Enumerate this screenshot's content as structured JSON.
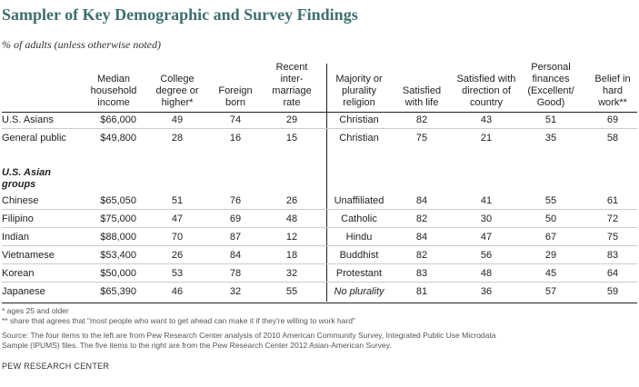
{
  "title": "Sampler of Key Demographic and Survey Findings",
  "subtitle": "% of adults (unless otherwise noted)",
  "columns": {
    "income": [
      "Median",
      "household",
      "income"
    ],
    "college": [
      "College",
      "degree or",
      "higher*"
    ],
    "foreign": [
      "Foreign",
      "born"
    ],
    "intermarriage": [
      "Recent",
      "inter-",
      "marriage",
      "rate"
    ],
    "religion": [
      "Majority or",
      "plurality",
      "religion"
    ],
    "life": [
      "Satisfied",
      "with life"
    ],
    "direction": [
      "Satisfied with",
      "direction of",
      "country"
    ],
    "finances": [
      "Personal",
      "finances",
      "(Excellent/",
      "Good)"
    ],
    "hardwork": [
      "Belief in",
      "hard",
      "work**"
    ]
  },
  "top_rows": [
    {
      "group": "U.S. Asians",
      "income": "$66,000",
      "college": "49",
      "foreign": "74",
      "intermarriage": "29",
      "religion": "Christian",
      "life": "82",
      "direction": "43",
      "finances": "51",
      "hardwork": "69"
    },
    {
      "group": "General public",
      "income": "$49,800",
      "college": "28",
      "foreign": "16",
      "intermarriage": "15",
      "religion": "Christian",
      "life": "75",
      "direction": "21",
      "finances": "35",
      "hardwork": "58"
    }
  ],
  "section_label": [
    "U.S. Asian",
    "groups"
  ],
  "group_rows": [
    {
      "group": "Chinese",
      "income": "$65,050",
      "college": "51",
      "foreign": "76",
      "intermarriage": "26",
      "religion": "Unaffiliated",
      "life": "84",
      "direction": "41",
      "finances": "55",
      "hardwork": "61"
    },
    {
      "group": "Filipino",
      "income": "$75,000",
      "college": "47",
      "foreign": "69",
      "intermarriage": "48",
      "religion": "Catholic",
      "life": "82",
      "direction": "30",
      "finances": "50",
      "hardwork": "72"
    },
    {
      "group": "Indian",
      "income": "$88,000",
      "college": "70",
      "foreign": "87",
      "intermarriage": "12",
      "religion": "Hindu",
      "life": "84",
      "direction": "47",
      "finances": "67",
      "hardwork": "75"
    },
    {
      "group": "Vietnamese",
      "income": "$53,400",
      "college": "26",
      "foreign": "84",
      "intermarriage": "18",
      "religion": "Buddhist",
      "life": "82",
      "direction": "56",
      "finances": "29",
      "hardwork": "83"
    },
    {
      "group": "Korean",
      "income": "$50,000",
      "college": "53",
      "foreign": "78",
      "intermarriage": "32",
      "religion": "Protestant",
      "life": "83",
      "direction": "48",
      "finances": "45",
      "hardwork": "64"
    },
    {
      "group": "Japanese",
      "income": "$65,390",
      "college": "46",
      "foreign": "32",
      "intermarriage": "55",
      "religion": "No plurality",
      "religion_italic": true,
      "life": "81",
      "direction": "36",
      "finances": "57",
      "hardwork": "59"
    }
  ],
  "notes": {
    "n1": "* ages 25 and older",
    "n2": "** share that agrees that \"most people who want to get ahead can make it if they're willing to work hard\""
  },
  "source_lines": [
    "Source: The four items to the left are from Pew Research Center analysis of 2010 American Community Survey, Integrated Public Use Microdata",
    "Sample (IPUMS) files. The five items to the right are from the Pew Research Center 2012 Asian-American Survey."
  ],
  "footer": "PEW RESEARCH CENTER",
  "colors": {
    "title": "#3f6f6f",
    "rule": "#222222",
    "light_rule": "#cccccc"
  }
}
